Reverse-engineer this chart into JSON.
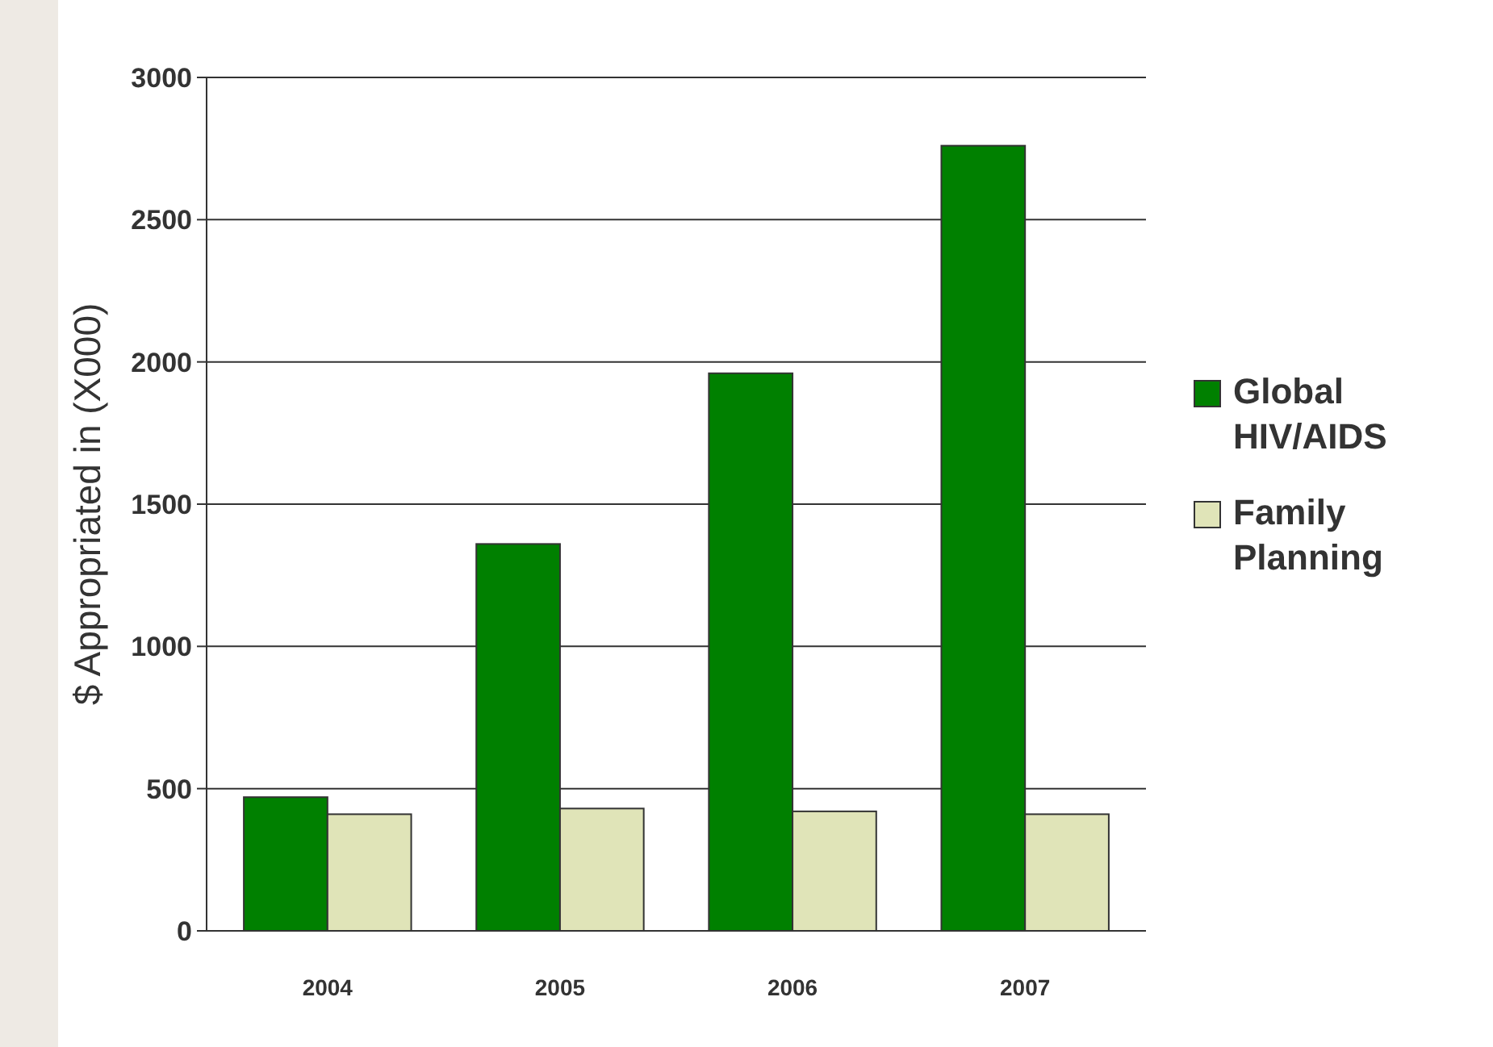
{
  "chart_data": {
    "type": "bar",
    "ylabel": "$ Appropriated in (X000)",
    "categories": [
      "2004",
      "2005",
      "2006",
      "2007"
    ],
    "series": [
      {
        "name": "Global HIV/AIDS",
        "color": "#008000",
        "values": [
          470,
          1360,
          1960,
          2760
        ]
      },
      {
        "name": "Family Planning",
        "color": "#e0e4b8",
        "values": [
          410,
          430,
          420,
          410
        ]
      }
    ],
    "ylim": [
      0,
      3000
    ],
    "yticks": [
      0,
      500,
      1000,
      1500,
      2000,
      2500,
      3000
    ],
    "grid": "y",
    "legend": "right"
  }
}
